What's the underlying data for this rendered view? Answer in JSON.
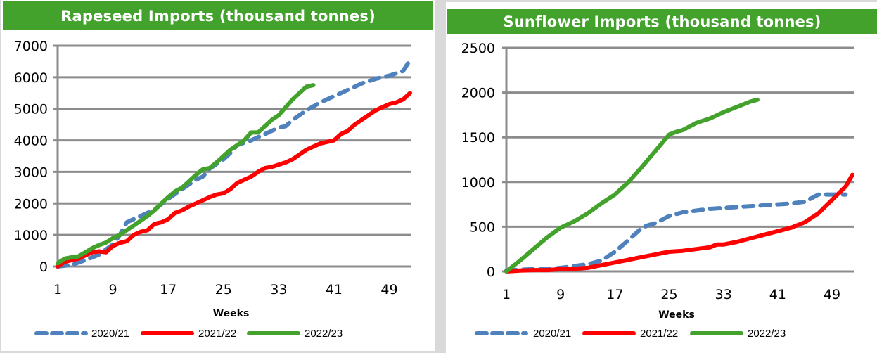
{
  "chart_data": [
    {
      "type": "line",
      "title": "Rapeseed Imports (thousand tonnes)",
      "xlabel": "Weeks",
      "ylabel": "",
      "xlim": [
        1,
        52
      ],
      "ylim": [
        0,
        7000
      ],
      "x_ticks": [
        1,
        9,
        17,
        25,
        33,
        41,
        49
      ],
      "y_ticks": [
        0,
        1000,
        2000,
        3000,
        4000,
        5000,
        6000,
        7000
      ],
      "grid": true,
      "legend_position": "bottom",
      "series": [
        {
          "name": "2020/21",
          "color": "#4f81bd",
          "style": "dashed",
          "x": [
            1,
            3,
            5,
            7,
            9,
            10,
            11,
            13,
            15,
            17,
            19,
            21,
            22,
            23,
            25,
            26,
            27,
            29,
            31,
            33,
            34,
            35,
            37,
            39,
            41,
            43,
            45,
            47,
            49,
            51,
            52
          ],
          "y": [
            0,
            50,
            200,
            380,
            700,
            1000,
            1400,
            1600,
            1800,
            2150,
            2450,
            2750,
            2850,
            3100,
            3400,
            3600,
            3850,
            4000,
            4200,
            4400,
            4450,
            4650,
            4950,
            5200,
            5400,
            5600,
            5800,
            5950,
            6050,
            6200,
            6550
          ]
        },
        {
          "name": "2021/22",
          "color": "#ff0000",
          "style": "solid",
          "x": [
            1,
            2,
            4,
            5,
            6,
            7,
            8,
            9,
            10,
            11,
            12,
            13,
            14,
            15,
            16,
            17,
            18,
            19,
            20,
            21,
            22,
            23,
            24,
            25,
            26,
            27,
            28,
            29,
            30,
            31,
            32,
            33,
            34,
            35,
            36,
            37,
            38,
            39,
            40,
            41,
            42,
            43,
            44,
            45,
            46,
            47,
            48,
            49,
            50,
            51,
            52
          ],
          "y": [
            0,
            150,
            250,
            350,
            450,
            480,
            450,
            650,
            750,
            800,
            1000,
            1100,
            1150,
            1350,
            1400,
            1500,
            1700,
            1780,
            1900,
            2000,
            2100,
            2200,
            2280,
            2320,
            2450,
            2650,
            2750,
            2850,
            3000,
            3120,
            3160,
            3230,
            3300,
            3400,
            3550,
            3700,
            3800,
            3900,
            3950,
            4000,
            4200,
            4300,
            4500,
            4650,
            4800,
            4950,
            5050,
            5150,
            5200,
            5300,
            5500
          ]
        },
        {
          "name": "2022/23",
          "color": "#43a22c",
          "style": "solid",
          "x": [
            1,
            2,
            3,
            4,
            5,
            6,
            7,
            8,
            9,
            10,
            11,
            12,
            13,
            14,
            15,
            16,
            17,
            18,
            19,
            20,
            21,
            22,
            23,
            24,
            25,
            26,
            27,
            28,
            29,
            30,
            31,
            32,
            33,
            34,
            35,
            36,
            37,
            38
          ],
          "y": [
            100,
            250,
            290,
            320,
            450,
            580,
            680,
            760,
            900,
            1000,
            1150,
            1300,
            1450,
            1600,
            1780,
            2000,
            2200,
            2380,
            2500,
            2700,
            2900,
            3080,
            3120,
            3300,
            3500,
            3700,
            3850,
            4000,
            4250,
            4250,
            4450,
            4650,
            4800,
            5050,
            5300,
            5500,
            5700,
            5750
          ]
        }
      ]
    },
    {
      "type": "line",
      "title": "Sunflower Imports (thousand tonnes)",
      "xlabel": "Weeks",
      "ylabel": "",
      "xlim": [
        1,
        52
      ],
      "ylim": [
        0,
        2500
      ],
      "x_ticks": [
        1,
        9,
        17,
        25,
        33,
        41,
        49
      ],
      "y_ticks": [
        0,
        500,
        1000,
        1500,
        2000,
        2500
      ],
      "grid": true,
      "legend_position": "bottom",
      "series": [
        {
          "name": "2020/21",
          "color": "#4f81bd",
          "style": "dashed",
          "x": [
            1,
            3,
            5,
            7,
            9,
            11,
            13,
            15,
            17,
            19,
            21,
            22,
            23,
            25,
            27,
            29,
            31,
            33,
            35,
            37,
            39,
            41,
            43,
            45,
            47,
            49,
            51
          ],
          "y": [
            10,
            20,
            25,
            25,
            40,
            60,
            80,
            120,
            220,
            350,
            490,
            520,
            540,
            620,
            660,
            680,
            700,
            710,
            720,
            730,
            740,
            750,
            760,
            780,
            860,
            860,
            860
          ]
        },
        {
          "name": "2021/22",
          "color": "#ff0000",
          "style": "solid",
          "x": [
            1,
            3,
            5,
            7,
            9,
            11,
            13,
            15,
            17,
            19,
            21,
            23,
            25,
            27,
            29,
            31,
            32,
            33,
            35,
            37,
            39,
            41,
            43,
            45,
            47,
            49,
            51,
            52
          ],
          "y": [
            0,
            10,
            15,
            15,
            25,
            30,
            40,
            70,
            100,
            130,
            160,
            190,
            220,
            230,
            250,
            270,
            300,
            300,
            330,
            370,
            410,
            450,
            490,
            550,
            650,
            800,
            950,
            1080
          ]
        },
        {
          "name": "2022/23",
          "color": "#43a22c",
          "style": "solid",
          "x": [
            1,
            3,
            5,
            7,
            9,
            11,
            13,
            15,
            17,
            19,
            21,
            23,
            25,
            26,
            27,
            29,
            31,
            33,
            35,
            37,
            38
          ],
          "y": [
            0,
            120,
            250,
            380,
            490,
            560,
            650,
            760,
            860,
            1000,
            1170,
            1350,
            1530,
            1560,
            1580,
            1660,
            1710,
            1780,
            1840,
            1900,
            1920
          ]
        }
      ]
    }
  ]
}
